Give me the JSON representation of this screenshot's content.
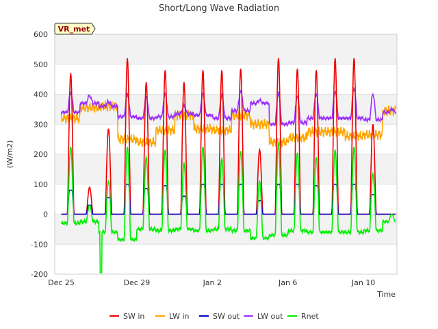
{
  "chart_data": {
    "type": "line",
    "title": "Short/Long Wave Radiation",
    "xlabel": "Time",
    "ylabel": "(W/m2)",
    "ylim": [
      -200,
      600
    ],
    "xlim": [
      0,
      18
    ],
    "yticks": [
      -200,
      -100,
      0,
      100,
      200,
      300,
      400,
      500,
      600
    ],
    "xticks": [
      {
        "x": 0,
        "label": "Dec 25"
      },
      {
        "x": 4,
        "label": "Dec 29"
      },
      {
        "x": 8,
        "label": "Jan 2"
      },
      {
        "x": 12,
        "label": "Jan 6"
      },
      {
        "x": 16,
        "label": "Jan 10"
      }
    ],
    "x_unit_note": "x = days after Dec 25",
    "site_label": "VR_met",
    "grid": true,
    "legend_position": "bottom",
    "daily": {
      "day_offsets": [
        0,
        1,
        2,
        3,
        4,
        5,
        6,
        7,
        8,
        9,
        10,
        11,
        12,
        13,
        14,
        15,
        16,
        17
      ],
      "sw_in_peak": [
        470,
        90,
        285,
        520,
        440,
        480,
        440,
        480,
        480,
        485,
        215,
        520,
        485,
        480,
        520,
        520,
        300,
        0
      ],
      "sw_out_peak": [
        80,
        30,
        55,
        100,
        85,
        95,
        60,
        100,
        100,
        100,
        45,
        100,
        100,
        95,
        100,
        100,
        65,
        0
      ],
      "rnet_peak": [
        225,
        30,
        110,
        225,
        190,
        215,
        170,
        225,
        185,
        210,
        110,
        240,
        205,
        190,
        215,
        225,
        135,
        0
      ],
      "rnet_night": [
        -30,
        -25,
        -60,
        -85,
        -50,
        -55,
        -50,
        -55,
        -50,
        -55,
        -80,
        -70,
        -55,
        -60,
        -60,
        -60,
        -55,
        -25
      ],
      "lw_in_level": [
        320,
        355,
        360,
        250,
        240,
        280,
        330,
        285,
        280,
        330,
        300,
        240,
        255,
        275,
        275,
        260,
        265,
        345
      ],
      "lw_out_night": [
        340,
        370,
        360,
        325,
        320,
        325,
        335,
        330,
        320,
        345,
        370,
        300,
        305,
        320,
        320,
        320,
        315,
        340
      ],
      "lw_out_peak": [
        405,
        395,
        375,
        400,
        390,
        400,
        360,
        400,
        395,
        410,
        380,
        405,
        395,
        400,
        410,
        420,
        400,
        350
      ]
    },
    "series": [
      {
        "name": "SW in",
        "color": "#ee0000"
      },
      {
        "name": "LW in",
        "color": "#ffa500"
      },
      {
        "name": "SW out",
        "color": "#0000cc"
      },
      {
        "name": "LW out",
        "color": "#9b30ff"
      },
      {
        "name": "Rnet",
        "color": "#00ee00"
      }
    ]
  }
}
